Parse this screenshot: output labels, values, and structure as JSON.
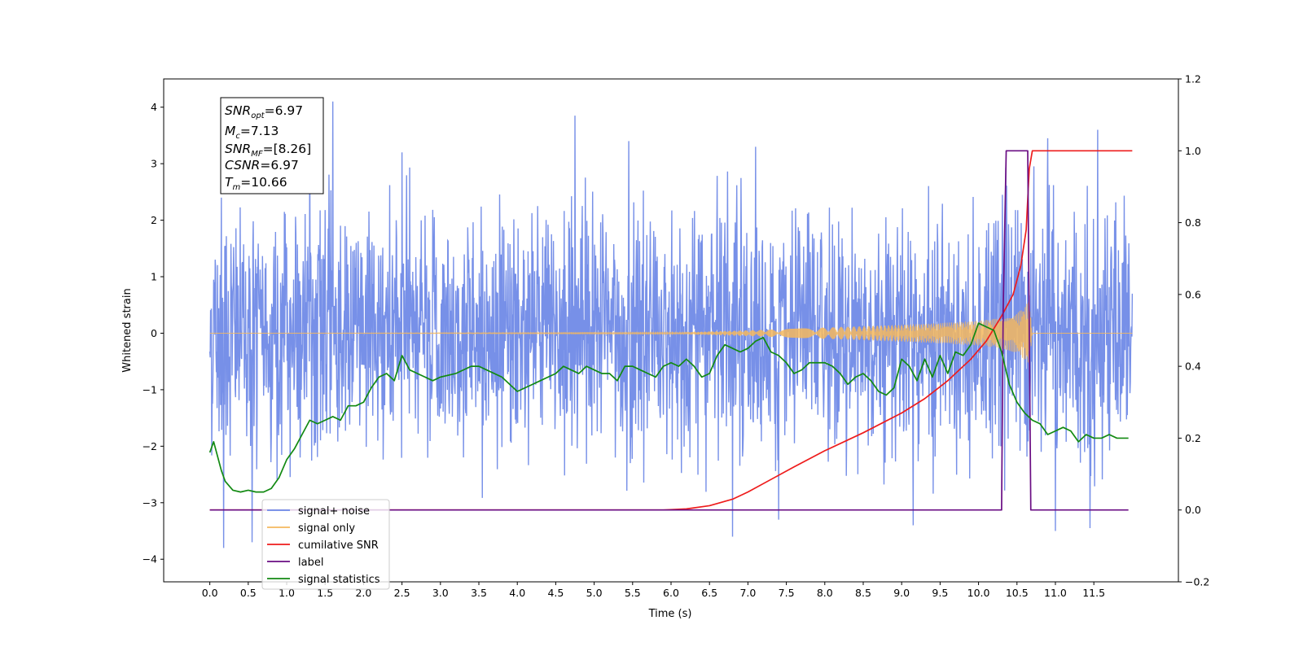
{
  "chart_data": {
    "type": "line",
    "xlabel": "Time (s)",
    "ylabel": "Whitened strain",
    "xlim": [
      -0.6,
      12.6
    ],
    "ylim": [
      -4.4,
      4.5
    ],
    "ylim_right": [
      -0.2,
      1.2
    ],
    "x_ticks": [
      "0.0",
      "0.5",
      "1.0",
      "1.5",
      "2.0",
      "2.5",
      "3.0",
      "3.5",
      "4.0",
      "4.5",
      "5.0",
      "5.5",
      "6.0",
      "6.5",
      "7.0",
      "7.5",
      "8.0",
      "8.5",
      "9.0",
      "9.5",
      "10.0",
      "10.5",
      "11.0",
      "11.5"
    ],
    "y_ticks": [
      "−4",
      "−3",
      "−2",
      "−1",
      "0",
      "1",
      "2",
      "3",
      "4"
    ],
    "y_ticks_right": [
      "−0.2",
      "0.0",
      "0.2",
      "0.4",
      "0.6",
      "0.8",
      "1.0",
      "1.2"
    ],
    "grid": false,
    "legend_position": "lower-left",
    "info_box": {
      "snr_opt_label": "SNR",
      "snr_opt_sub": "opt",
      "snr_opt_value": "=6.97",
      "mc_label": "M",
      "mc_sub": "c",
      "mc_value": "=7.13",
      "snr_mf_label": "SNR",
      "snr_mf_sub": "MF",
      "snr_mf_value": "=[8.26]",
      "csnr_label": "CSNR",
      "csnr_value": "=6.97",
      "tm_label": "T",
      "tm_sub": "m",
      "tm_value": "=10.66"
    },
    "series": [
      {
        "name": "signal+ noise",
        "color": "#6b87e6",
        "axis": "left",
        "description_values": "noise band roughly −2.7 to 2.8, peaks near 4.1 and −3.8",
        "x": [
          0.0,
          12.0
        ],
        "envelope_upper": 2.8,
        "envelope_lower": -2.7,
        "peaks": [
          [
            0.15,
            2.4
          ],
          [
            0.18,
            -3.8
          ],
          [
            1.6,
            4.1
          ],
          [
            1.3,
            3.8
          ],
          [
            2.5,
            3.2
          ],
          [
            4.75,
            3.85
          ],
          [
            5.45,
            3.4
          ],
          [
            7.1,
            3.3
          ],
          [
            10.9,
            3.45
          ],
          [
            11.55,
            3.6
          ],
          [
            0.55,
            -3.7
          ],
          [
            6.8,
            -3.6
          ],
          [
            9.15,
            -3.4
          ],
          [
            11.0,
            -3.5
          ],
          [
            11.45,
            -3.45
          ],
          [
            7.4,
            -3.3
          ]
        ]
      },
      {
        "name": "signal only",
        "color": "#f5b85e",
        "axis": "left",
        "x": [
          0.0,
          6.0,
          7.0,
          8.0,
          9.0,
          9.5,
          10.0,
          10.3,
          10.5,
          10.62,
          10.66,
          10.7,
          12.0
        ],
        "amplitude": [
          0.0,
          0.01,
          0.05,
          0.1,
          0.15,
          0.18,
          0.22,
          0.27,
          0.35,
          0.5,
          0.6,
          0.0,
          0.0
        ]
      },
      {
        "name": "cumilative SNR",
        "color": "#ee1c1c",
        "axis": "right",
        "x": [
          0.0,
          5.9,
          6.2,
          6.5,
          6.8,
          7.0,
          7.3,
          7.6,
          8.0,
          8.5,
          9.0,
          9.3,
          9.6,
          9.9,
          10.1,
          10.3,
          10.45,
          10.55,
          10.62,
          10.66,
          10.7,
          12.0
        ],
        "values": [
          0.0,
          0.0,
          0.003,
          0.012,
          0.03,
          0.05,
          0.085,
          0.12,
          0.165,
          0.215,
          0.27,
          0.31,
          0.36,
          0.42,
          0.47,
          0.54,
          0.6,
          0.68,
          0.78,
          0.95,
          1.0,
          1.0
        ]
      },
      {
        "name": "label",
        "color": "#6a0d83",
        "axis": "right",
        "x": [
          0.0,
          10.3,
          10.32,
          10.36,
          10.64,
          10.68,
          11.95
        ],
        "values": [
          0.0,
          0.0,
          0.55,
          1.0,
          1.0,
          0.0,
          0.0
        ]
      },
      {
        "name": "signal statistics",
        "color": "#128a12",
        "axis": "right",
        "x": [
          0.0,
          0.05,
          0.1,
          0.15,
          0.2,
          0.3,
          0.4,
          0.5,
          0.6,
          0.7,
          0.8,
          0.9,
          1.0,
          1.1,
          1.2,
          1.3,
          1.4,
          1.5,
          1.6,
          1.7,
          1.8,
          1.9,
          2.0,
          2.1,
          2.2,
          2.3,
          2.4,
          2.5,
          2.6,
          2.7,
          2.8,
          2.9,
          3.0,
          3.2,
          3.4,
          3.5,
          3.6,
          3.8,
          4.0,
          4.1,
          4.2,
          4.3,
          4.4,
          4.5,
          4.6,
          4.7,
          4.8,
          4.9,
          5.0,
          5.1,
          5.2,
          5.3,
          5.4,
          5.5,
          5.6,
          5.7,
          5.8,
          5.9,
          6.0,
          6.1,
          6.2,
          6.3,
          6.4,
          6.5,
          6.6,
          6.7,
          6.8,
          6.9,
          7.0,
          7.1,
          7.2,
          7.3,
          7.4,
          7.5,
          7.6,
          7.7,
          7.8,
          7.9,
          8.0,
          8.1,
          8.2,
          8.3,
          8.4,
          8.5,
          8.6,
          8.7,
          8.8,
          8.9,
          9.0,
          9.1,
          9.2,
          9.3,
          9.4,
          9.5,
          9.6,
          9.7,
          9.8,
          9.9,
          10.0,
          10.1,
          10.2,
          10.3,
          10.4,
          10.5,
          10.6,
          10.7,
          10.8,
          10.9,
          11.0,
          11.1,
          11.2,
          11.3,
          11.4,
          11.5,
          11.6,
          11.7,
          11.8,
          11.9,
          11.95
        ],
        "values": [
          0.16,
          0.19,
          0.15,
          0.11,
          0.08,
          0.055,
          0.05,
          0.055,
          0.05,
          0.05,
          0.06,
          0.09,
          0.14,
          0.17,
          0.21,
          0.25,
          0.24,
          0.25,
          0.26,
          0.25,
          0.29,
          0.29,
          0.3,
          0.34,
          0.37,
          0.38,
          0.36,
          0.43,
          0.39,
          0.38,
          0.37,
          0.36,
          0.37,
          0.38,
          0.4,
          0.4,
          0.39,
          0.37,
          0.33,
          0.34,
          0.35,
          0.36,
          0.37,
          0.38,
          0.4,
          0.39,
          0.38,
          0.4,
          0.39,
          0.38,
          0.38,
          0.36,
          0.4,
          0.4,
          0.39,
          0.38,
          0.37,
          0.4,
          0.41,
          0.4,
          0.42,
          0.4,
          0.37,
          0.38,
          0.43,
          0.46,
          0.45,
          0.44,
          0.45,
          0.47,
          0.48,
          0.44,
          0.43,
          0.41,
          0.38,
          0.39,
          0.41,
          0.41,
          0.41,
          0.4,
          0.38,
          0.35,
          0.37,
          0.38,
          0.36,
          0.33,
          0.32,
          0.34,
          0.42,
          0.4,
          0.36,
          0.42,
          0.37,
          0.43,
          0.38,
          0.44,
          0.43,
          0.46,
          0.52,
          0.51,
          0.5,
          0.44,
          0.35,
          0.3,
          0.27,
          0.25,
          0.24,
          0.21,
          0.22,
          0.23,
          0.22,
          0.19,
          0.21,
          0.2,
          0.2,
          0.21,
          0.2,
          0.2,
          0.2
        ]
      }
    ]
  }
}
